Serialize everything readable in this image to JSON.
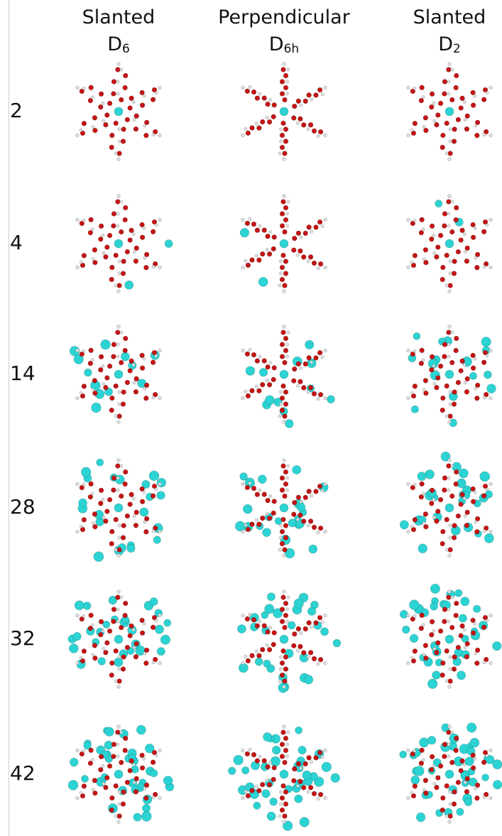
{
  "columns": [
    {
      "title": "Slanted",
      "symbol": "D",
      "subscript": "6"
    },
    {
      "title": "Perpendicular",
      "symbol": "D",
      "subscript": "6h"
    },
    {
      "title": "Slanted",
      "symbol": "D",
      "subscript": "2"
    }
  ],
  "rows": [
    "2",
    "4",
    "14",
    "28",
    "32",
    "42"
  ]
}
